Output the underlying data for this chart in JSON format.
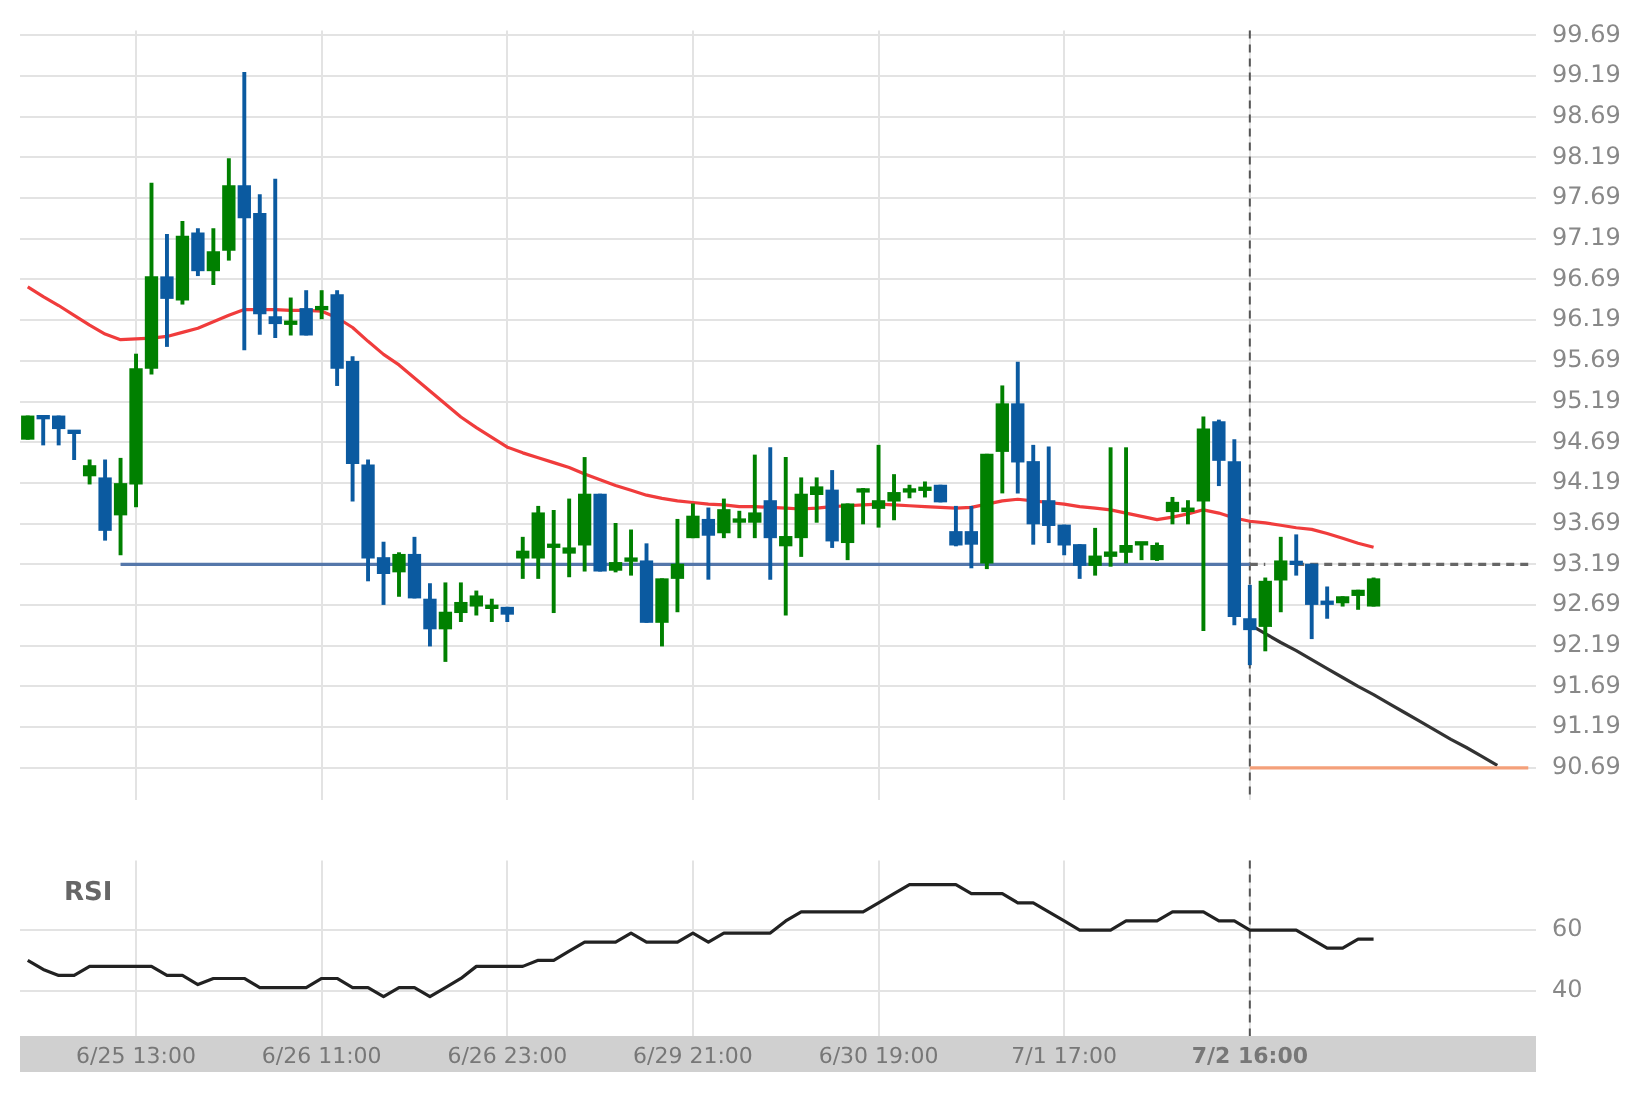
{
  "chart_data": [
    {
      "type": "candlestick",
      "categories": [
        null,
        null,
        null,
        null,
        null,
        null,
        null,
        "6/25 13:00",
        null,
        null,
        null,
        null,
        null,
        null,
        null,
        null,
        null,
        null,
        null,
        "6/26 11:00",
        null,
        null,
        null,
        null,
        null,
        null,
        null,
        null,
        null,
        null,
        null,
        "6/26 23:00",
        null,
        null,
        null,
        null,
        null,
        null,
        null,
        null,
        null,
        null,
        null,
        "6/29 21:00",
        null,
        null,
        null,
        null,
        null,
        null,
        null,
        null,
        null,
        null,
        null,
        "6/30 19:00",
        null,
        null,
        null,
        null,
        null,
        null,
        null,
        null,
        null,
        null,
        null,
        "7/1 17:00",
        null,
        null,
        null,
        null,
        null,
        null,
        null,
        null,
        null,
        null,
        null,
        "7/2 16:00",
        null,
        null,
        null,
        null,
        null,
        null,
        null,
        null,
        null,
        null,
        null,
        null,
        null,
        null,
        null,
        null,
        null,
        null
      ],
      "ylim": [
        90.3,
        99.75
      ],
      "yticks": [
        90.69,
        91.19,
        91.69,
        92.19,
        92.69,
        93.19,
        93.69,
        94.19,
        94.69,
        95.19,
        95.69,
        96.19,
        96.69,
        97.19,
        97.69,
        98.19,
        98.69,
        99.19,
        99.69
      ],
      "grid": true,
      "tick_labels": "y",
      "marker": "none",
      "ref_lines": [
        {
          "axis": "x",
          "value": "7/2 16:00",
          "color": "#555555",
          "line_style": "dashed"
        }
      ],
      "series": [
        {
          "type": "line",
          "color": "#f03c3c",
          "values": [
            96.6,
            96.48,
            96.37,
            96.25,
            96.13,
            96.02,
            95.95,
            95.96,
            95.97,
            95.99,
            96.04,
            96.09,
            96.17,
            96.25,
            96.32,
            96.32,
            96.32,
            96.31,
            96.31,
            96.3,
            96.22,
            96.1,
            95.93,
            95.77,
            95.64,
            95.48,
            95.32,
            95.16,
            95.0,
            94.87,
            94.75,
            94.63,
            94.56,
            94.5,
            94.44,
            94.38,
            94.3,
            94.23,
            94.16,
            94.1,
            94.04,
            94.0,
            93.97,
            93.95,
            93.93,
            93.92,
            93.9,
            93.9,
            93.89,
            93.88,
            93.87,
            93.88,
            93.9,
            93.91,
            93.92,
            93.93,
            93.92,
            93.91,
            93.9,
            93.89,
            93.88,
            93.89,
            93.93,
            93.97,
            93.99,
            93.97,
            93.95,
            93.93,
            93.9,
            93.88,
            93.86,
            93.82,
            93.78,
            93.74,
            93.77,
            93.81,
            93.86,
            93.82,
            93.76,
            93.72,
            93.7,
            93.67,
            93.64,
            93.62,
            93.57,
            93.51,
            93.45,
            93.4,
            null,
            null,
            null,
            null,
            null,
            null,
            null,
            null,
            null,
            null
          ]
        },
        {
          "type": "line",
          "color": "#5577aa",
          "values": [
            null,
            null,
            null,
            null,
            null,
            null,
            93.19,
            93.19,
            93.19,
            93.19,
            93.19,
            93.19,
            93.19,
            93.19,
            93.19,
            93.19,
            93.19,
            93.19,
            93.19,
            93.19,
            93.19,
            93.19,
            93.19,
            93.19,
            93.19,
            93.19,
            93.19,
            93.19,
            93.19,
            93.19,
            93.19,
            93.19,
            93.19,
            93.19,
            93.19,
            93.19,
            93.19,
            93.19,
            93.19,
            93.19,
            93.19,
            93.19,
            93.19,
            93.19,
            93.19,
            93.19,
            93.19,
            93.19,
            93.19,
            93.19,
            93.19,
            93.19,
            93.19,
            93.19,
            93.19,
            93.19,
            93.19,
            93.19,
            93.19,
            93.19,
            93.19,
            93.19,
            93.19,
            93.19,
            93.19,
            93.19,
            93.19,
            93.19,
            93.19,
            93.19,
            93.19,
            93.19,
            93.19,
            93.19,
            93.19,
            93.19,
            93.19,
            93.19,
            93.19,
            93.19,
            null,
            null,
            null,
            null,
            null,
            null,
            null,
            null,
            null,
            null,
            null,
            null,
            null,
            null,
            null,
            null,
            null,
            null
          ]
        },
        {
          "type": "line",
          "color": "#666666",
          "line_style": "dashed",
          "values": [
            null,
            null,
            null,
            null,
            null,
            null,
            null,
            null,
            null,
            null,
            null,
            null,
            null,
            null,
            null,
            null,
            null,
            null,
            null,
            null,
            null,
            null,
            null,
            null,
            null,
            null,
            null,
            null,
            null,
            null,
            null,
            null,
            null,
            null,
            null,
            null,
            null,
            null,
            null,
            null,
            null,
            null,
            null,
            null,
            null,
            null,
            null,
            null,
            null,
            null,
            null,
            null,
            null,
            null,
            null,
            null,
            null,
            null,
            null,
            null,
            null,
            null,
            null,
            null,
            null,
            null,
            null,
            null,
            null,
            null,
            null,
            null,
            null,
            null,
            null,
            null,
            null,
            null,
            null,
            93.19,
            93.19,
            null,
            93.19,
            93.19,
            93.19,
            93.19,
            93.19,
            93.19,
            93.19,
            93.19,
            93.19,
            93.19,
            93.19,
            93.19,
            93.19,
            93.19,
            93.19,
            93.19
          ]
        },
        {
          "type": "line",
          "color": "#f4a07a",
          "values": [
            null,
            null,
            null,
            null,
            null,
            null,
            null,
            null,
            null,
            null,
            null,
            null,
            null,
            null,
            null,
            null,
            null,
            null,
            null,
            null,
            null,
            null,
            null,
            null,
            null,
            null,
            null,
            null,
            null,
            null,
            null,
            null,
            null,
            null,
            null,
            null,
            null,
            null,
            null,
            null,
            null,
            null,
            null,
            null,
            null,
            null,
            null,
            null,
            null,
            null,
            null,
            null,
            null,
            null,
            null,
            null,
            null,
            null,
            null,
            null,
            null,
            null,
            null,
            null,
            null,
            null,
            null,
            null,
            null,
            null,
            null,
            null,
            null,
            null,
            null,
            null,
            null,
            null,
            null,
            90.69,
            90.69,
            90.69,
            90.69,
            90.69,
            90.69,
            90.69,
            90.69,
            90.69,
            90.69,
            90.69,
            90.69,
            90.69,
            90.69,
            90.69,
            90.69,
            90.69,
            90.69,
            90.69
          ]
        },
        {
          "type": "line",
          "color": "#333333",
          "values": [
            null,
            null,
            null,
            null,
            null,
            null,
            null,
            null,
            null,
            null,
            null,
            null,
            null,
            null,
            null,
            null,
            null,
            null,
            null,
            null,
            null,
            null,
            null,
            null,
            null,
            null,
            null,
            null,
            null,
            null,
            null,
            null,
            null,
            null,
            null,
            null,
            null,
            null,
            null,
            null,
            null,
            null,
            null,
            null,
            null,
            null,
            null,
            null,
            null,
            null,
            null,
            null,
            null,
            null,
            null,
            null,
            null,
            null,
            null,
            null,
            null,
            null,
            null,
            null,
            null,
            null,
            null,
            null,
            null,
            null,
            null,
            null,
            null,
            null,
            null,
            null,
            null,
            null,
            null,
            92.45,
            92.34,
            92.23,
            92.13,
            92.02,
            91.91,
            91.8,
            91.69,
            91.59,
            91.48,
            91.37,
            91.26,
            91.15,
            91.04,
            90.94,
            90.83,
            90.72,
            null,
            null
          ]
        },
        {
          "type": "candlestick",
          "colors": [
            "#008000",
            "#0b5aa0",
            "#0b5aa0",
            "#0b5aa0",
            "#008000",
            "#0b5aa0",
            "#008000",
            "#008000",
            "#008000",
            "#0b5aa0",
            "#008000",
            "#0b5aa0",
            "#008000",
            "#008000",
            "#0b5aa0",
            "#0b5aa0",
            "#0b5aa0",
            "#008000",
            "#0b5aa0",
            "#008000",
            "#0b5aa0",
            "#0b5aa0",
            "#0b5aa0",
            "#0b5aa0",
            "#008000",
            "#0b5aa0",
            "#0b5aa0",
            "#008000",
            "#008000",
            "#008000",
            "#008000",
            "#0b5aa0",
            "#008000",
            "#008000",
            "#008000",
            "#008000",
            "#008000",
            "#0b5aa0",
            "#008000",
            "#008000",
            "#0b5aa0",
            "#008000",
            "#008000",
            "#008000",
            "#0b5aa0",
            "#008000",
            "#008000",
            "#008000",
            "#0b5aa0",
            "#008000",
            "#008000",
            "#008000",
            "#0b5aa0",
            "#008000",
            "#008000",
            "#008000",
            "#008000",
            "#008000",
            "#008000",
            "#0b5aa0",
            "#0b5aa0",
            "#0b5aa0",
            "#008000",
            "#008000",
            "#0b5aa0",
            "#0b5aa0",
            "#0b5aa0",
            "#0b5aa0",
            "#0b5aa0",
            "#008000",
            "#008000",
            "#008000",
            "#008000",
            "#008000",
            "#008000",
            "#008000",
            "#008000",
            "#0b5aa0",
            "#0b5aa0",
            "#0b5aa0",
            "#008000",
            "#008000",
            "#0b5aa0",
            "#0b5aa0",
            "#0b5aa0",
            "#008000",
            "#008000",
            "#008000",
            null,
            null,
            null,
            null,
            null,
            null,
            null,
            null,
            null,
            null
          ],
          "ohlc": [
            [
              94.73,
              95.01,
              94.73,
              95.01
            ],
            [
              95.0,
              95.0,
              94.66,
              94.98
            ],
            [
              95.01,
              95.01,
              94.66,
              94.86
            ],
            [
              94.83,
              94.83,
              94.48,
              94.8
            ],
            [
              94.28,
              94.47,
              94.18,
              94.4
            ],
            [
              94.25,
              94.47,
              93.49,
              93.61
            ],
            [
              93.8,
              94.49,
              93.31,
              94.18
            ],
            [
              94.18,
              95.77,
              93.9,
              95.59
            ],
            [
              95.6,
              97.87,
              95.53,
              96.72
            ],
            [
              96.72,
              97.24,
              95.87,
              96.46
            ],
            [
              96.44,
              97.4,
              96.39,
              97.22
            ],
            [
              97.26,
              97.31,
              96.74,
              96.8
            ],
            [
              96.8,
              97.31,
              96.63,
              97.03
            ],
            [
              97.05,
              98.17,
              96.93,
              97.84
            ],
            [
              97.84,
              99.23,
              95.83,
              97.45
            ],
            [
              97.5,
              97.73,
              96.02,
              96.27
            ],
            [
              96.23,
              97.92,
              95.98,
              96.15
            ],
            [
              96.14,
              96.46,
              96.01,
              96.16
            ],
            [
              96.33,
              96.55,
              96.01,
              96.01
            ],
            [
              96.32,
              96.55,
              96.21,
              96.33
            ],
            [
              96.5,
              96.55,
              95.39,
              95.6
            ],
            [
              95.68,
              95.74,
              93.97,
              94.43
            ],
            [
              94.41,
              94.47,
              92.99,
              93.27
            ],
            [
              93.27,
              93.46,
              92.7,
              93.08
            ],
            [
              93.1,
              93.33,
              92.8,
              93.31
            ],
            [
              93.31,
              93.52,
              92.78,
              92.78
            ],
            [
              92.76,
              92.95,
              92.19,
              92.4
            ],
            [
              92.4,
              92.96,
              92.0,
              92.6
            ],
            [
              92.6,
              92.96,
              92.49,
              92.72
            ],
            [
              92.68,
              92.86,
              92.57,
              92.8
            ],
            [
              92.65,
              92.76,
              92.49,
              92.66
            ],
            [
              92.66,
              92.66,
              92.49,
              92.58
            ],
            [
              93.27,
              93.52,
              93.02,
              93.35
            ],
            [
              93.27,
              93.9,
              93.02,
              93.82
            ],
            [
              93.4,
              93.85,
              92.6,
              93.42
            ],
            [
              93.33,
              93.99,
              93.04,
              93.39
            ],
            [
              93.43,
              94.5,
              93.11,
              94.05
            ],
            [
              94.05,
              94.05,
              93.11,
              93.11
            ],
            [
              93.12,
              93.69,
              93.1,
              93.21
            ],
            [
              93.23,
              93.61,
              93.06,
              93.24
            ],
            [
              93.23,
              93.44,
              92.48,
              92.48
            ],
            [
              92.48,
              93.01,
              92.19,
              93.01
            ],
            [
              93.02,
              93.74,
              92.61,
              93.19
            ],
            [
              93.52,
              93.93,
              93.52,
              93.78
            ],
            [
              93.74,
              93.88,
              93.01,
              93.55
            ],
            [
              93.58,
              93.99,
              93.52,
              93.86
            ],
            [
              93.71,
              93.84,
              93.52,
              93.73
            ],
            [
              93.71,
              94.53,
              93.52,
              93.82
            ],
            [
              93.97,
              94.62,
              93.01,
              93.52
            ],
            [
              93.42,
              94.5,
              92.57,
              93.53
            ],
            [
              93.52,
              94.25,
              93.29,
              94.05
            ],
            [
              94.05,
              94.25,
              93.71,
              94.14
            ],
            [
              94.1,
              94.34,
              93.4,
              93.48
            ],
            [
              93.46,
              93.93,
              93.25,
              93.93
            ],
            [
              94.08,
              94.12,
              93.69,
              94.09
            ],
            [
              93.88,
              94.65,
              93.65,
              93.97
            ],
            [
              93.97,
              94.29,
              93.74,
              94.07
            ],
            [
              94.08,
              94.16,
              94.01,
              94.09
            ],
            [
              94.1,
              94.2,
              94.02,
              94.11
            ],
            [
              94.16,
              94.16,
              93.96,
              93.96
            ],
            [
              93.59,
              93.9,
              93.42,
              93.43
            ],
            [
              93.59,
              93.9,
              93.15,
              93.44
            ],
            [
              93.21,
              94.54,
              93.14,
              94.54
            ],
            [
              94.58,
              95.38,
              94.07,
              95.16
            ],
            [
              95.16,
              95.67,
              94.07,
              94.45
            ],
            [
              94.45,
              94.65,
              93.44,
              93.69
            ],
            [
              93.97,
              94.63,
              93.46,
              93.67
            ],
            [
              93.67,
              93.67,
              93.31,
              93.43
            ],
            [
              93.43,
              93.43,
              93.02,
              93.18
            ],
            [
              93.18,
              93.63,
              93.06,
              93.29
            ],
            [
              93.29,
              94.62,
              93.17,
              93.34
            ],
            [
              93.34,
              94.62,
              93.21,
              93.42
            ],
            [
              93.43,
              93.45,
              93.25,
              93.45
            ],
            [
              93.25,
              93.45,
              93.24,
              93.42
            ],
            [
              93.84,
              94.01,
              93.69,
              93.95
            ],
            [
              93.84,
              93.97,
              93.69,
              93.88
            ],
            [
              93.97,
              95.0,
              92.38,
              94.85
            ],
            [
              94.94,
              94.96,
              94.16,
              94.47
            ],
            [
              94.45,
              94.72,
              92.45,
              92.55
            ],
            [
              92.52,
              92.93,
              91.96,
              92.39
            ],
            [
              92.43,
              93.02,
              92.13,
              92.98
            ],
            [
              93.0,
              93.52,
              92.61,
              93.23
            ],
            [
              93.2,
              93.55,
              93.06,
              93.19
            ],
            [
              93.19,
              93.19,
              92.28,
              92.7
            ],
            [
              92.72,
              92.91,
              92.53,
              92.7
            ],
            [
              92.72,
              92.79,
              92.68,
              92.79
            ],
            [
              92.81,
              92.87,
              92.64,
              92.87
            ],
            [
              92.68,
              93.02,
              92.68,
              93.01
            ],
            null,
            null,
            null,
            null,
            null,
            null,
            null,
            null,
            null,
            null
          ]
        }
      ]
    },
    {
      "type": "line",
      "title": "RSI",
      "categories": [
        null,
        null,
        null,
        null,
        null,
        null,
        null,
        "6/25 13:00",
        null,
        null,
        null,
        null,
        null,
        null,
        null,
        null,
        null,
        null,
        null,
        "6/26 11:00",
        null,
        null,
        null,
        null,
        null,
        null,
        null,
        null,
        null,
        null,
        null,
        "6/26 23:00",
        null,
        null,
        null,
        null,
        null,
        null,
        null,
        null,
        null,
        null,
        null,
        "6/29 21:00",
        null,
        null,
        null,
        null,
        null,
        null,
        null,
        null,
        null,
        null,
        null,
        "6/30 19:00",
        null,
        null,
        null,
        null,
        null,
        null,
        null,
        null,
        null,
        null,
        null,
        "7/1 17:00",
        null,
        null,
        null,
        null,
        null,
        null,
        null,
        null,
        null,
        null,
        null,
        "7/2 16:00",
        null,
        null,
        null,
        null,
        null,
        null,
        null,
        null,
        null,
        null,
        null,
        null,
        null,
        null,
        null,
        null,
        null,
        null
      ],
      "ylim": [
        25,
        83
      ],
      "yticks": [
        40,
        60
      ],
      "grid": true,
      "marker": "none",
      "ref_lines": [
        {
          "axis": "x",
          "value": "7/2 16:00",
          "color": "#555555",
          "line_style": "dashed"
        }
      ],
      "series": [
        {
          "color": "#222222",
          "values": [
            50,
            47,
            45,
            45,
            48,
            48,
            48,
            48,
            48,
            45,
            45,
            42,
            44,
            44,
            44,
            41,
            41,
            41,
            41,
            44,
            44,
            41,
            41,
            38,
            41,
            41,
            38,
            41,
            44,
            48,
            48,
            48,
            48,
            50,
            50,
            53,
            56,
            56,
            56,
            59,
            56,
            56,
            56,
            59,
            56,
            59,
            59,
            59,
            59,
            63,
            66,
            66,
            66,
            66,
            66,
            69,
            72,
            75,
            75,
            75,
            75,
            72,
            72,
            72,
            69,
            69,
            66,
            63,
            60,
            60,
            60,
            63,
            63,
            63,
            66,
            66,
            66,
            63,
            63,
            60,
            60,
            60,
            60,
            57,
            54,
            54,
            57,
            57,
            null,
            null,
            null,
            null,
            null,
            null,
            null,
            null,
            null,
            null
          ]
        }
      ]
    }
  ]
}
